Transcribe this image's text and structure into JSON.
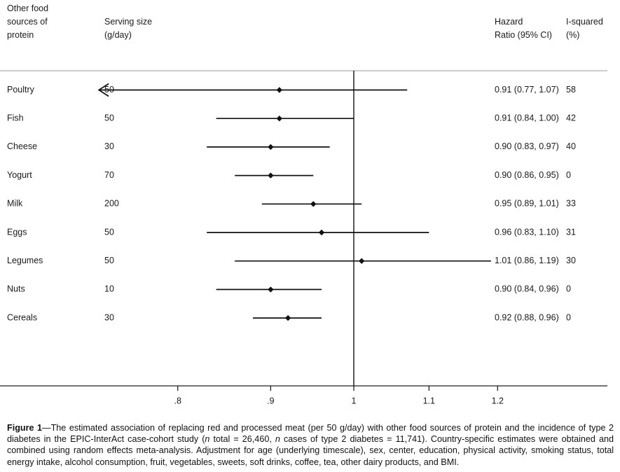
{
  "headers": {
    "col_food": "Other food\nsources of\nprotein",
    "col_serving": "Serving size\n(g/day)",
    "col_hr": "Hazard\nRatio (95% CI)",
    "col_i2": "I-squared\n(%)"
  },
  "chart_data": {
    "type": "forest",
    "reference_line": 1,
    "x_scale": "log",
    "x_ticks": [
      0.8,
      0.9,
      1.0,
      1.1,
      1.2
    ],
    "x_tick_labels": [
      ".8",
      ".9",
      "1",
      "1.1",
      "1.2"
    ],
    "xlim": [
      0.72,
      1.24
    ],
    "rows": [
      {
        "label": "Poultry",
        "serving": "50",
        "hr": 0.91,
        "lo": 0.77,
        "hi": 1.07,
        "ci_text": "0.91 (0.77, 1.07)",
        "i2": "58",
        "arrow_left": true
      },
      {
        "label": "Fish",
        "serving": "50",
        "hr": 0.91,
        "lo": 0.84,
        "hi": 1.0,
        "ci_text": "0.91 (0.84, 1.00)",
        "i2": "42",
        "arrow_left": false
      },
      {
        "label": "Cheese",
        "serving": "30",
        "hr": 0.9,
        "lo": 0.83,
        "hi": 0.97,
        "ci_text": "0.90 (0.83, 0.97)",
        "i2": "40",
        "arrow_left": false
      },
      {
        "label": "Yogurt",
        "serving": "70",
        "hr": 0.9,
        "lo": 0.86,
        "hi": 0.95,
        "ci_text": "0.90 (0.86, 0.95)",
        "i2": "0",
        "arrow_left": false
      },
      {
        "label": "Milk",
        "serving": "200",
        "hr": 0.95,
        "lo": 0.89,
        "hi": 1.01,
        "ci_text": "0.95 (0.89, 1.01)",
        "i2": "33",
        "arrow_left": false
      },
      {
        "label": "Eggs",
        "serving": "50",
        "hr": 0.96,
        "lo": 0.83,
        "hi": 1.1,
        "ci_text": "0.96 (0.83, 1.10)",
        "i2": "31",
        "arrow_left": false
      },
      {
        "label": "Legumes",
        "serving": "50",
        "hr": 1.01,
        "lo": 0.86,
        "hi": 1.19,
        "ci_text": "1.01 (0.86, 1.19)",
        "i2": "30",
        "arrow_left": false
      },
      {
        "label": "Nuts",
        "serving": "10",
        "hr": 0.9,
        "lo": 0.84,
        "hi": 0.96,
        "ci_text": "0.90 (0.84, 0.96)",
        "i2": "0",
        "arrow_left": false
      },
      {
        "label": "Cereals",
        "serving": "30",
        "hr": 0.92,
        "lo": 0.88,
        "hi": 0.96,
        "ci_text": "0.92 (0.88, 0.96)",
        "i2": "0",
        "arrow_left": false
      }
    ]
  },
  "caption": {
    "label": "Figure 1",
    "dash": "—",
    "text_1": "The estimated association of replacing red and processed meat (per 50 g/day) with other food sources of protein and the incidence of type 2 diabetes in the EPIC-InterAct case-cohort study (",
    "n1": "n",
    "text_2": " total = 26,460, ",
    "n2": "n",
    "text_3": " cases of type 2 diabetes = 11,741). Country-specific estimates were obtained and combined using random effects meta-analysis. Adjustment for age (underlying timescale), sex, center, education, physical activity, smoking status, total energy intake, alcohol consumption, fruit, vegetables, sweets, soft drinks, coffee, tea, other dairy products, and BMI."
  }
}
